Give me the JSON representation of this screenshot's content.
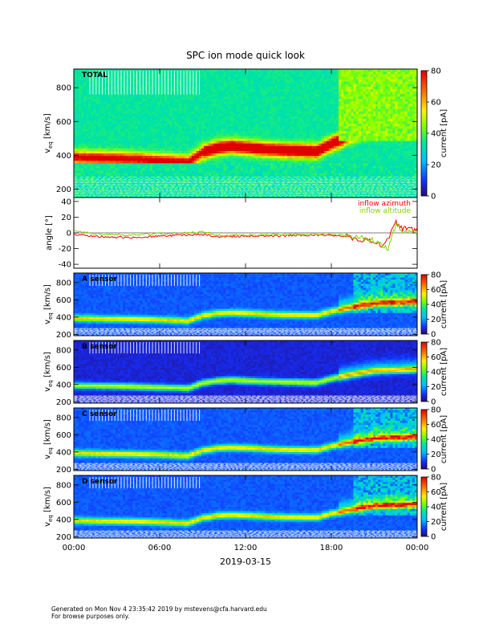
{
  "title": "SPC ion mode quick look",
  "date_label": "2019-03-15",
  "footer": {
    "generated": "Generated on Mon Nov  4 23:35:42 2019 by mstevens@cfa.harvard.edu",
    "browse": "For browse purposes only."
  },
  "colors": {
    "azimuth": "#ff0000",
    "altitude": "#7fd400"
  },
  "chart_data": [
    {
      "type": "heatmap",
      "panel_label": "TOTAL",
      "ylabel": "v_eq [km/s]",
      "ylim": [
        150,
        910
      ],
      "yticks": [
        200,
        400,
        600,
        800
      ],
      "x_ticks": [
        "00:00",
        "06:00",
        "12:00",
        "18:00",
        "00:00"
      ],
      "colorbar": {
        "label": "current [pA]",
        "range": [
          0,
          80
        ],
        "ticks": [
          0,
          20,
          40,
          60,
          80
        ]
      },
      "bulk_speed_ridge": {
        "hours": [
          0,
          2,
          4,
          6,
          8,
          9,
          10,
          11,
          13,
          15,
          17,
          18,
          19.5,
          21,
          24
        ],
        "v_kms": [
          390,
          385,
          380,
          370,
          360,
          420,
          445,
          455,
          440,
          430,
          425,
          470,
          520,
          560,
          580
        ]
      }
    },
    {
      "type": "line",
      "ylabel": "angle [°]",
      "ylim": [
        -45,
        45
      ],
      "yticks": [
        -40,
        -20,
        0,
        20,
        40
      ],
      "x_ticks": [
        "00:00",
        "06:00",
        "12:00",
        "18:00",
        "00:00"
      ],
      "series": [
        {
          "name": "inflow azimuth",
          "hours": [
            0,
            2,
            4,
            6,
            8,
            9,
            10,
            12,
            14,
            16,
            18,
            19,
            20,
            21,
            21.5,
            22,
            22.5,
            23,
            24
          ],
          "values": [
            -2,
            -5,
            -6,
            -4,
            -3,
            -2,
            -5,
            -4,
            -4,
            -3,
            -3,
            -5,
            -8,
            -12,
            -15,
            -8,
            15,
            5,
            4
          ]
        },
        {
          "name": "inflow altitude",
          "hours": [
            0,
            2,
            4,
            6,
            8,
            9,
            10,
            12,
            14,
            16,
            18,
            19,
            20,
            21,
            21.5,
            22,
            22.5,
            23,
            24
          ],
          "values": [
            3,
            -2,
            -3,
            -1,
            0,
            2,
            -3,
            -3,
            -2,
            -2,
            -1,
            -4,
            -6,
            -10,
            -14,
            -20,
            10,
            3,
            2
          ]
        }
      ]
    },
    {
      "type": "heatmap",
      "panel_label": "A sensor",
      "ylabel": "v_eq [km/s]",
      "ylim": [
        185,
        910
      ],
      "yticks": [
        200,
        400,
        600,
        800
      ],
      "x_ticks": [
        "00:00",
        "06:00",
        "12:00",
        "18:00",
        "00:00"
      ],
      "colorbar": {
        "label": "current [pA]",
        "range": [
          0,
          80
        ],
        "ticks": [
          0,
          20,
          40,
          60,
          80
        ]
      }
    },
    {
      "type": "heatmap",
      "panel_label": "B sensor",
      "ylabel": "v_eq [km/s]",
      "ylim": [
        185,
        910
      ],
      "yticks": [
        200,
        400,
        600,
        800
      ],
      "x_ticks": [
        "00:00",
        "06:00",
        "12:00",
        "18:00",
        "00:00"
      ],
      "colorbar": {
        "label": "current [pA]",
        "range": [
          0,
          80
        ],
        "ticks": [
          0,
          20,
          40,
          60,
          80
        ]
      }
    },
    {
      "type": "heatmap",
      "panel_label": "C sensor",
      "ylabel": "v_eq [km/s]",
      "ylim": [
        185,
        910
      ],
      "yticks": [
        200,
        400,
        600,
        800
      ],
      "x_ticks": [
        "00:00",
        "06:00",
        "12:00",
        "18:00",
        "00:00"
      ],
      "colorbar": {
        "label": "current [pA]",
        "range": [
          0,
          80
        ],
        "ticks": [
          0,
          20,
          40,
          60,
          80
        ]
      }
    },
    {
      "type": "heatmap",
      "panel_label": "D sensor",
      "ylabel": "v_eq [km/s]",
      "ylim": [
        185,
        910
      ],
      "yticks": [
        200,
        400,
        600,
        800
      ],
      "x_ticks": [
        "00:00",
        "06:00",
        "12:00",
        "18:00",
        "00:00"
      ],
      "colorbar": {
        "label": "current [pA]",
        "range": [
          0,
          80
        ],
        "ticks": [
          0,
          20,
          40,
          60,
          80
        ]
      }
    }
  ]
}
